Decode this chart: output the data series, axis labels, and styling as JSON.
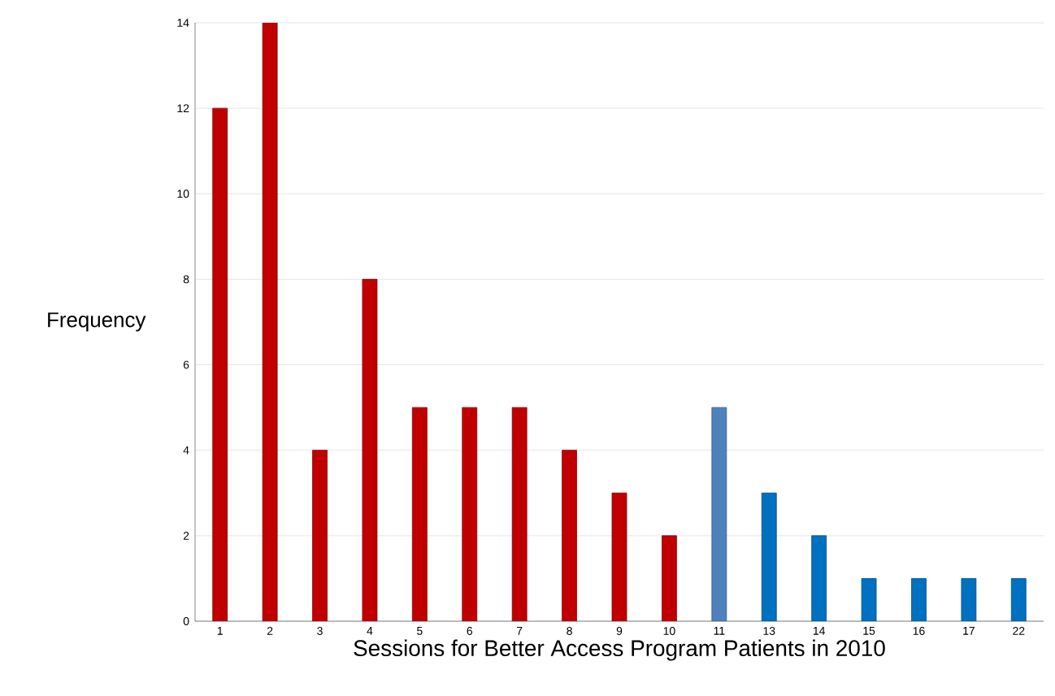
{
  "chart_data": {
    "type": "bar",
    "xlabel": "Sessions for Better Access Program Patients in 2010",
    "ylabel": "Frequency",
    "categories": [
      "1",
      "2",
      "3",
      "4",
      "5",
      "6",
      "7",
      "8",
      "9",
      "10",
      "11",
      "13",
      "14",
      "15",
      "16",
      "17",
      "22"
    ],
    "values": [
      12,
      14,
      4,
      8,
      5,
      5,
      5,
      4,
      3,
      2,
      5,
      3,
      2,
      1,
      1,
      1,
      1
    ],
    "colors": [
      "#c00000",
      "#c00000",
      "#c00000",
      "#c00000",
      "#c00000",
      "#c00000",
      "#c00000",
      "#c00000",
      "#c00000",
      "#c00000",
      "#4f81bd",
      "#0070c0",
      "#0070c0",
      "#0070c0",
      "#0070c0",
      "#0070c0",
      "#0070c0"
    ],
    "ylim": [
      0,
      14
    ],
    "yticks": [
      0,
      2,
      4,
      6,
      8,
      10,
      12,
      14
    ],
    "grid": "y"
  }
}
